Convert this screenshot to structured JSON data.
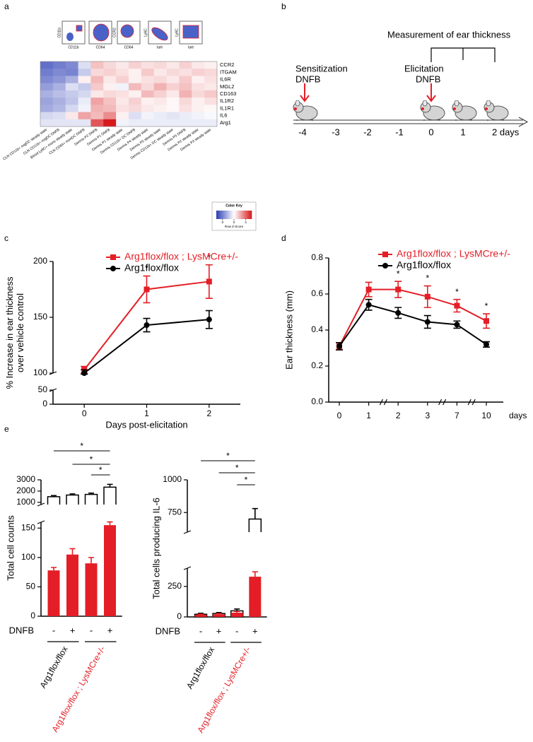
{
  "panels": [
    "a",
    "b",
    "c",
    "d",
    "e"
  ],
  "gating": {
    "x_labels": [
      "CD11b",
      "CD64",
      "CD64",
      "Ia/e",
      "Ia/e"
    ],
    "y_labels": [
      "CD11c",
      "",
      "CCR2",
      "Ly6C",
      "Ly6C"
    ]
  },
  "diagram": {
    "title": "Measurement of ear thickness",
    "steps": [
      {
        "label": "Sensitization",
        "agent": "DNFB"
      },
      {
        "label": "Elicitation",
        "agent": "DNFB"
      }
    ],
    "timeline": [
      "-4",
      "-3",
      "-2",
      "-1",
      "0",
      "1",
      "2 days"
    ]
  },
  "chart_data": [
    {
      "type": "heatmap",
      "rows": [
        "CCR2",
        "ITGAM",
        "IL6R",
        "MGL2",
        "CD163",
        "IL1R2",
        "IL1R1",
        "IL6",
        "Arg1"
      ],
      "columns": [
        "CLN CD11b+ migDC steady state",
        "CLN CD11b+ migDC DNFB",
        "Blood Ly6C+ mono steady state",
        "CLN CD64+ monDC DNFB",
        "Dermis P2 DNFB",
        "Dermis P1 DNFB",
        "Dermis P1 steady state",
        "Dermis CD11b+ DC DNFB",
        "Dermis P4 steady state",
        "Dermis P5 steady state",
        "Dermis CD11b+ DC steady state",
        "Dermis P5 DNFB",
        "Dermis P2 steady state",
        "Dermis P3 steady state"
      ],
      "values": [
        [
          -2.2,
          -2.0,
          -1.8,
          -0.5,
          0.8,
          0.5,
          0.3,
          0.6,
          0.4,
          0.5,
          0.3,
          0.6,
          0.3,
          0.2
        ],
        [
          -2.0,
          -1.8,
          -1.9,
          -0.8,
          0.5,
          0.6,
          0.4,
          0.2,
          0.7,
          0.3,
          0.5,
          0.4,
          0.6,
          0.5
        ],
        [
          -1.8,
          -1.6,
          -1.2,
          0.2,
          0.9,
          0.3,
          0.6,
          0.2,
          0.4,
          0.5,
          0.3,
          0.7,
          0.2,
          0.4
        ],
        [
          -1.5,
          -1.2,
          -0.5,
          -0.8,
          0.7,
          0.2,
          -0.2,
          0.9,
          0.5,
          1.0,
          0.6,
          0.8,
          0.4,
          0.3
        ],
        [
          -1.2,
          -1.0,
          -0.8,
          -0.6,
          0.3,
          0.5,
          0.4,
          0.2,
          0.9,
          0.6,
          0.3,
          1.0,
          0.5,
          0.7
        ],
        [
          -1.4,
          -1.2,
          -0.9,
          -0.3,
          1.2,
          0.8,
          0.3,
          0.6,
          0.2,
          0.3,
          0.1,
          0.5,
          0.2,
          0.4
        ],
        [
          -1.3,
          -1.1,
          -0.6,
          -0.2,
          1.0,
          0.9,
          0.4,
          0.5,
          0.3,
          0.2,
          0.1,
          0.4,
          0.2,
          0.1
        ],
        [
          -0.6,
          -0.5,
          0.3,
          1.2,
          0.9,
          1.5,
          0.2,
          -0.5,
          -0.2,
          -0.3,
          -0.4,
          -0.3,
          -0.2,
          -0.1
        ],
        [
          -0.4,
          -0.4,
          -0.4,
          -0.4,
          2.2,
          3.0,
          -0.2,
          -0.3,
          -0.3,
          -0.3,
          -0.3,
          -0.3,
          -0.3,
          -0.3
        ]
      ],
      "zlim": [
        -3,
        3
      ],
      "colors": [
        "#2a3cb4",
        "#ffffff",
        "#d7191c"
      ],
      "color_key": {
        "title": "Color Key",
        "label": "Row Z-Score",
        "ticks": [
          -2,
          0,
          2
        ]
      }
    },
    {
      "type": "line",
      "x": [
        0,
        1,
        2
      ],
      "xlim": [
        -0.5,
        2.5
      ],
      "xticks": [
        0,
        1,
        2
      ],
      "xlabel": "Days post-elicitation",
      "ylabel": [
        "% Increase in ear thickness",
        "over vehicle control"
      ],
      "ylim": [
        0,
        200
      ],
      "ybreak": [
        50,
        100
      ],
      "yticks": [
        0,
        50,
        100,
        150,
        200
      ],
      "legend": "top",
      "series": [
        {
          "name": "Arg1flox/flox ; LysMCre+/-",
          "color": "#e41e26",
          "marker": "square",
          "values": [
            103,
            175,
            182
          ],
          "errors": [
            3,
            12,
            15
          ]
        },
        {
          "name": "Arg1flox/flox",
          "color": "#000000",
          "marker": "circle",
          "values": [
            100,
            143,
            148
          ],
          "errors": [
            3,
            6,
            8
          ]
        }
      ],
      "significance": [
        null,
        "*",
        "*"
      ]
    },
    {
      "type": "line",
      "categories": [
        "0",
        "1",
        "2",
        "3",
        "7",
        "10"
      ],
      "xlabel": "days",
      "ylabel": [
        "Ear thickness (mm)"
      ],
      "ylim": [
        0,
        0.8
      ],
      "yticks": [
        {
          "value": 0,
          "label": "0.0"
        },
        0.2,
        0.4,
        0.6,
        0.8
      ],
      "legend": "top",
      "series": [
        {
          "name": "Arg1flox/flox ; LysMCre+/-",
          "color": "#e41e26",
          "marker": "square",
          "values": [
            0.31,
            0.625,
            0.625,
            0.585,
            0.535,
            0.45
          ],
          "errors": [
            0.02,
            0.04,
            0.045,
            0.06,
            0.035,
            0.04
          ]
        },
        {
          "name": "Arg1flox/flox",
          "color": "#000000",
          "marker": "circle",
          "values": [
            0.31,
            0.54,
            0.495,
            0.445,
            0.43,
            0.32
          ],
          "errors": [
            0.02,
            0.03,
            0.03,
            0.035,
            0.02,
            0.015
          ]
        }
      ],
      "significance": [
        null,
        null,
        "*",
        "*",
        "*",
        "*"
      ]
    },
    {
      "type": "bar",
      "categories": [
        "-",
        "+",
        "-",
        "+"
      ],
      "xlabel": "DNFB",
      "ylabel": [
        "Total cell counts"
      ],
      "ylim": [
        0,
        3000
      ],
      "ybreak": [
        160,
        800
      ],
      "yticks": [
        0,
        50,
        100,
        150,
        1000,
        2000,
        3000
      ],
      "series": [
        {
          "color": "#ffffff",
          "values": [
            1500,
            1650,
            1700,
            2350
          ],
          "errors": [
            100,
            100,
            120,
            250
          ]
        },
        {
          "color": "#e41e26",
          "values": [
            78,
            105,
            90,
            155
          ],
          "errors": [
            5,
            10,
            10,
            15
          ]
        }
      ],
      "groups": [
        {
          "name": "Arg1flox/flox",
          "color": "#000000"
        },
        {
          "name": "Arg1flox/flox ; LysMCre+/-",
          "color": "#e41e26"
        }
      ],
      "significance": [
        "*",
        "*",
        "*"
      ]
    },
    {
      "type": "bar",
      "categories": [
        "-",
        "+",
        "-",
        "+"
      ],
      "xlabel": "DNFB",
      "ylabel": [
        "Total cells producing IL-6"
      ],
      "ylim": [
        0,
        1000
      ],
      "ybreak": [
        400,
        600
      ],
      "yticks": [
        0,
        250,
        750,
        1000
      ],
      "series": [
        {
          "color": "#ffffff",
          "values": [
            22,
            28,
            50,
            700
          ],
          "errors": [
            8,
            8,
            15,
            80
          ]
        },
        {
          "color": "#e41e26",
          "values": [
            18,
            22,
            35,
            330
          ],
          "errors": [
            5,
            5,
            10,
            40
          ]
        }
      ],
      "groups": [
        {
          "name": "Arg1flox/flox",
          "color": "#000000"
        },
        {
          "name": "Arg1flox/flox ; LysMCre+/-",
          "color": "#e41e26"
        }
      ],
      "significance": [
        "*",
        "*",
        "*"
      ]
    }
  ]
}
